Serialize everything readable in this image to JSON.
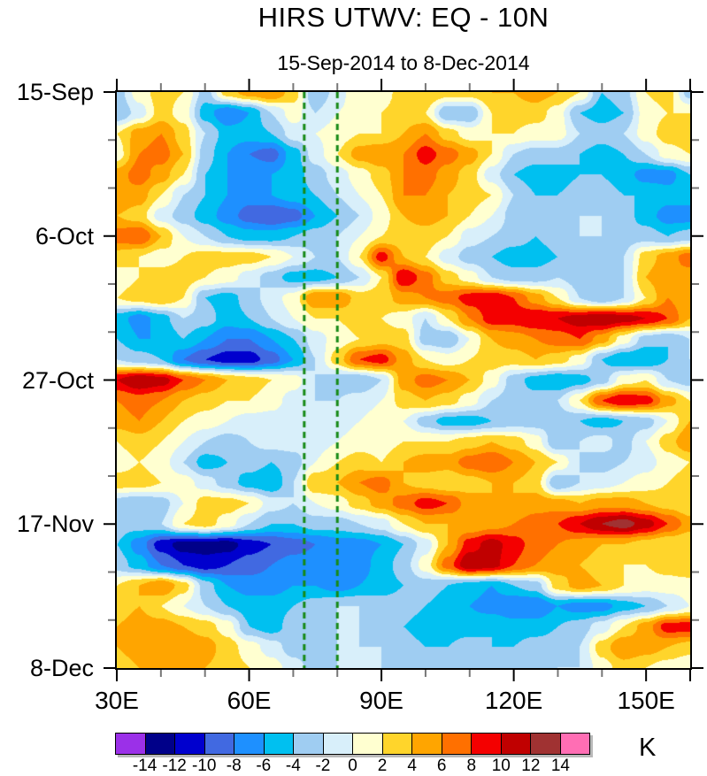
{
  "title": "HIRS UTWV: EQ - 10N",
  "subtitle": "15-Sep-2014 to 8-Dec-2014",
  "colorbar": {
    "unit_label": "K",
    "tick_labels": [
      "-14",
      "-12",
      "-10",
      "-8",
      "-6",
      "-4",
      "-2",
      "0",
      "2",
      "4",
      "6",
      "8",
      "10",
      "12",
      "14"
    ],
    "colors": [
      "#9b30e8",
      "#000089",
      "#0000ce",
      "#4169e1",
      "#1e90ff",
      "#00c0f0",
      "#9fcdf2",
      "#d8effa",
      "#ffffd0",
      "#ffd52b",
      "#ffa500",
      "#ff7000",
      "#f40000",
      "#c00000",
      "#a03232",
      "#ff6eb4"
    ]
  },
  "chart_data": {
    "type": "heatmap",
    "title": "HIRS UTWV: EQ - 10N",
    "subtitle": "15-Sep-2014 to 8-Dec-2014",
    "unit": "K",
    "x_range": [
      30,
      160
    ],
    "x_major": [
      30,
      60,
      90,
      120,
      150,
      160
    ],
    "x_major_labeled": [
      30,
      60,
      90,
      120,
      150
    ],
    "x_tick_labels": [
      "30E",
      "60E",
      "90E",
      "120E",
      "150E"
    ],
    "x_minor": [
      40,
      50,
      70,
      80,
      100,
      110,
      130,
      140
    ],
    "y_range_days": [
      0,
      84
    ],
    "y_major_days": [
      0,
      21,
      42,
      63,
      84
    ],
    "y_tick_labels": [
      "15-Sep",
      "6-Oct",
      "27-Oct",
      "17-Nov",
      "8-Dec"
    ],
    "y_minor_days": [
      7,
      14,
      28,
      35,
      49,
      56,
      70,
      77
    ],
    "levels": [
      -14,
      -12,
      -10,
      -8,
      -6,
      -4,
      -2,
      0,
      2,
      4,
      6,
      8,
      10,
      12,
      14
    ],
    "reference_lines_lon": [
      72.5,
      80
    ],
    "reference_line_color": "#168a16",
    "grid_lons": [
      30,
      35,
      40,
      45,
      50,
      55,
      60,
      65,
      70,
      75,
      80,
      85,
      90,
      95,
      100,
      105,
      110,
      115,
      120,
      125,
      130,
      135,
      140,
      145,
      150,
      155,
      160
    ],
    "grid_days": [
      0,
      3,
      6,
      9,
      12,
      15,
      18,
      21,
      24,
      27,
      30,
      33,
      36,
      39,
      42,
      45,
      48,
      51,
      54,
      57,
      60,
      63,
      66,
      69,
      72,
      75,
      78,
      81,
      84
    ],
    "values": [
      [
        -3,
        1,
        3,
        2,
        -3,
        3,
        5,
        6,
        3,
        -4,
        -1,
        2,
        1,
        3,
        4,
        3,
        3,
        4,
        4,
        5,
        4,
        2,
        -4,
        -3,
        2,
        3,
        -3
      ],
      [
        -4,
        -1,
        3,
        1,
        -5,
        -8,
        -6,
        -2,
        1,
        -2,
        0,
        1,
        2,
        3,
        2,
        -4,
        -4,
        2,
        3,
        3,
        1,
        -4,
        -5,
        -4,
        1,
        2,
        2
      ],
      [
        2,
        5,
        6,
        3,
        -2,
        -5,
        -5,
        -4,
        -1,
        0,
        1,
        2,
        2,
        4,
        6,
        3,
        1,
        2,
        2,
        1,
        1,
        -2,
        -3,
        -2,
        1,
        3,
        4
      ],
      [
        1,
        6,
        7,
        4,
        -3,
        -6,
        -8,
        -9,
        -5,
        -1,
        2,
        5,
        6,
        6,
        9,
        7,
        5,
        2,
        -2,
        -3,
        -3,
        -4,
        -5,
        -4,
        -2,
        1,
        2
      ],
      [
        5,
        7,
        5,
        2,
        -4,
        -6,
        -6,
        -6,
        -5,
        -3,
        -1,
        1,
        3,
        6,
        7,
        5,
        3,
        -1,
        -4,
        -5,
        -5,
        -4,
        -4,
        -5,
        -7,
        -7,
        -4
      ],
      [
        6,
        5,
        2,
        -2,
        -4,
        -6,
        -7,
        -6,
        -5,
        -4,
        -2,
        0,
        2,
        6,
        6,
        4,
        3,
        2,
        -2,
        -4,
        -4,
        -3,
        -3,
        -4,
        -4,
        -5,
        -5
      ],
      [
        4,
        3,
        -1,
        -3,
        -5,
        -7,
        -9,
        -10,
        -9,
        -6,
        -4,
        -2,
        1,
        4,
        5,
        4,
        2,
        0,
        -3,
        -4,
        -3,
        -2,
        -2,
        -3,
        -5,
        -7,
        -7
      ],
      [
        7,
        8,
        4,
        0,
        -2,
        -4,
        -5,
        -5,
        -4,
        -3,
        -2,
        0,
        2,
        3,
        3,
        2,
        -1,
        -2,
        -3,
        -4,
        -3,
        -2,
        -2,
        -3,
        -3,
        -4,
        -3
      ],
      [
        3,
        2,
        1,
        2,
        3,
        3,
        3,
        2,
        0,
        -2,
        -2,
        2,
        9,
        4,
        2,
        -1,
        -3,
        -4,
        -5,
        -5,
        -4,
        -2,
        -3,
        -2,
        3,
        5,
        7
      ],
      [
        1,
        2,
        3,
        3,
        2,
        1,
        -1,
        -3,
        -5,
        -5,
        -4,
        -2,
        2,
        10,
        7,
        3,
        1,
        -2,
        -3,
        -3,
        -2,
        -3,
        -2,
        -2,
        4,
        6,
        5
      ],
      [
        2,
        3,
        4,
        2,
        -4,
        -5,
        -3,
        -1,
        1,
        6,
        6,
        3,
        3,
        5,
        6,
        7,
        9,
        10,
        8,
        5,
        2,
        -2,
        -4,
        -2,
        2,
        6,
        4
      ],
      [
        -5,
        -7,
        -5,
        -2,
        -3,
        -5,
        -4,
        -2,
        0,
        2,
        2,
        3,
        2,
        1,
        -2,
        2,
        6,
        9,
        9,
        10,
        10,
        11,
        12,
        11,
        10,
        8,
        4
      ],
      [
        -4,
        -6,
        -6,
        -4,
        -6,
        -8,
        -8,
        -6,
        -4,
        -1,
        1,
        2,
        3,
        3,
        -3,
        -4,
        0,
        4,
        5,
        6,
        7,
        8,
        5,
        1,
        -3,
        -4,
        -2
      ],
      [
        -2,
        -3,
        -4,
        -8,
        -10,
        -11,
        -11,
        -9,
        -6,
        -2,
        3,
        8,
        9,
        5,
        2,
        1,
        2,
        3,
        3,
        4,
        3,
        1,
        -4,
        -6,
        -6,
        -4,
        -2
      ],
      [
        10,
        12,
        11,
        8,
        6,
        4,
        3,
        2,
        1,
        -2,
        -3,
        -4,
        -2,
        5,
        7,
        6,
        4,
        1,
        -3,
        -5,
        -6,
        -5,
        -3,
        1,
        2,
        -2,
        -3
      ],
      [
        6,
        7,
        6,
        4,
        3,
        2,
        2,
        1,
        -1,
        -2,
        -2,
        -1,
        0,
        3,
        4,
        3,
        1,
        -2,
        -3,
        -3,
        -2,
        2,
        8,
        10,
        9,
        5,
        2
      ],
      [
        5,
        6,
        4,
        2,
        1,
        0,
        -1,
        -1,
        -2,
        -2,
        -1,
        0,
        1,
        0,
        -3,
        -5,
        -5,
        -4,
        -3,
        -3,
        -3,
        -4,
        -5,
        -4,
        -3,
        0,
        4
      ],
      [
        2,
        3,
        2,
        0,
        -2,
        -3,
        -2,
        -1,
        -1,
        -1,
        0,
        1,
        1,
        2,
        2,
        2,
        3,
        4,
        3,
        1,
        -4,
        -2,
        -1,
        -3,
        0,
        3,
        6
      ],
      [
        1,
        2,
        1,
        -2,
        -5,
        -4,
        -3,
        -4,
        -3,
        0,
        2,
        3,
        2,
        4,
        5,
        5,
        7,
        8,
        6,
        4,
        2,
        -2,
        -3,
        -2,
        -1,
        1,
        2
      ],
      [
        3,
        3,
        2,
        1,
        -1,
        -3,
        -5,
        -6,
        -2,
        4,
        4,
        6,
        7,
        4,
        3,
        2,
        3,
        4,
        4,
        3,
        -4,
        -2,
        -1,
        0,
        1,
        2,
        3
      ],
      [
        -3,
        -4,
        -3,
        0,
        3,
        3,
        2,
        -1,
        -2,
        0,
        1,
        3,
        5,
        7,
        9,
        8,
        5,
        4,
        4,
        5,
        5,
        4,
        5,
        5,
        4,
        3,
        2
      ],
      [
        -3,
        -3,
        -2,
        2,
        3,
        1,
        -2,
        -4,
        -4,
        -3,
        -3,
        -2,
        -1,
        2,
        4,
        4,
        4,
        5,
        6,
        7,
        8,
        10,
        12,
        13,
        11,
        8,
        5
      ],
      [
        -4,
        -7,
        -11,
        -13,
        -13,
        -13,
        -11,
        -10,
        -9,
        -8,
        -7,
        -7,
        -6,
        -4,
        -1,
        4,
        9,
        11,
        9,
        7,
        6,
        5,
        4,
        4,
        3,
        2,
        2
      ],
      [
        -3,
        -5,
        -8,
        -10,
        -11,
        -10,
        -9,
        -8,
        -7,
        -7,
        -6,
        -7,
        -5,
        -3,
        1,
        7,
        12,
        11,
        8,
        6,
        5,
        4,
        3,
        2,
        2,
        3,
        4
      ],
      [
        2,
        4,
        6,
        3,
        -3,
        -6,
        -7,
        -7,
        -6,
        -6,
        -7,
        -6,
        -5,
        -4,
        -3,
        -4,
        -5,
        -6,
        -4,
        -3,
        3,
        5,
        4,
        2,
        1,
        1,
        1
      ],
      [
        3,
        4,
        2,
        0,
        -2,
        -4,
        -5,
        -5,
        -4,
        -3,
        -2,
        -2,
        -3,
        -3,
        -4,
        -5,
        -6,
        -7,
        -8,
        -8,
        -6,
        -7,
        -7,
        -5,
        -4,
        -2,
        0
      ],
      [
        4,
        5,
        5,
        4,
        3,
        1,
        -4,
        -5,
        -3,
        -2,
        -2,
        -2,
        -3,
        -4,
        -5,
        -5,
        -5,
        -4,
        -5,
        -5,
        -4,
        -3,
        -1,
        2,
        5,
        9,
        9
      ],
      [
        4,
        5,
        6,
        6,
        5,
        3,
        1,
        -1,
        -3,
        -4,
        -2,
        -2,
        -2,
        -3,
        -4,
        -4,
        -3,
        -4,
        -4,
        -3,
        -3,
        -2,
        3,
        6,
        5,
        4,
        3
      ],
      [
        3,
        4,
        5,
        4,
        4,
        3,
        2,
        1,
        -1,
        -3,
        -2,
        -2,
        -2,
        -3,
        -4,
        -4,
        -4,
        -4,
        -3,
        -3,
        -2,
        -2,
        1,
        3,
        2,
        1,
        0
      ]
    ]
  }
}
